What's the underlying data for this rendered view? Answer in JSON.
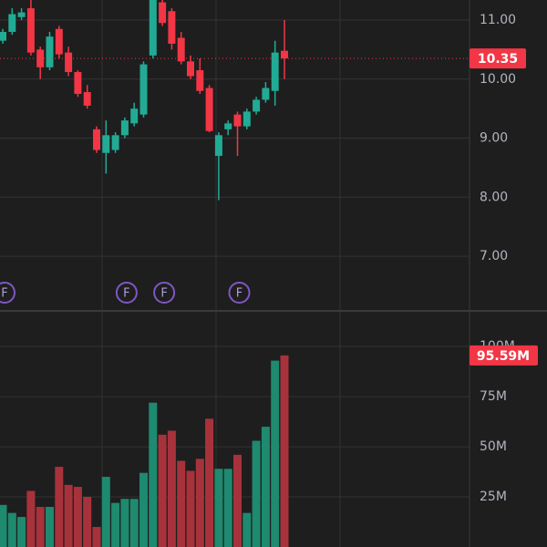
{
  "chart_data": [
    {
      "type": "candlestick",
      "open": [
        10.65,
        10.8,
        11.05,
        11.2,
        10.5,
        10.2,
        10.85,
        10.45,
        10.12,
        9.78,
        9.15,
        8.75,
        8.8,
        9.05,
        9.25,
        9.4,
        10.4,
        11.3,
        11.15,
        10.7,
        10.3,
        10.15,
        9.85,
        8.7,
        9.15,
        9.4,
        9.2,
        9.45,
        9.65,
        9.8,
        10.48
      ],
      "high": [
        10.85,
        11.2,
        11.2,
        11.34,
        10.55,
        10.8,
        10.9,
        10.55,
        10.15,
        9.9,
        9.2,
        9.3,
        9.1,
        9.35,
        9.6,
        10.3,
        11.4,
        11.34,
        11.2,
        10.8,
        10.4,
        10.35,
        9.9,
        9.1,
        9.3,
        9.45,
        9.5,
        9.7,
        9.95,
        10.65,
        11.0
      ],
      "low": [
        10.6,
        10.75,
        11.0,
        10.4,
        10.0,
        10.15,
        10.35,
        10.05,
        9.7,
        9.5,
        8.75,
        8.4,
        8.75,
        9.0,
        9.2,
        9.35,
        10.35,
        10.9,
        10.5,
        10.25,
        10.0,
        9.75,
        9.1,
        7.95,
        9.05,
        8.7,
        9.15,
        9.4,
        9.6,
        9.55,
        10.0
      ],
      "close": [
        10.8,
        11.1,
        11.13,
        10.45,
        10.2,
        10.72,
        10.42,
        10.12,
        9.75,
        9.55,
        8.8,
        9.05,
        9.05,
        9.3,
        9.5,
        10.25,
        11.4,
        10.95,
        10.6,
        10.3,
        10.05,
        9.8,
        9.12,
        9.05,
        9.25,
        9.2,
        9.45,
        9.65,
        9.85,
        10.45,
        10.35
      ],
      "up_color": "#22ab94",
      "down_color": "#f23645",
      "ylim": [
        6.09,
        11.34
      ],
      "yticks": [
        {
          "value": 7,
          "label": "7.00"
        },
        {
          "value": 8,
          "label": "8.00"
        },
        {
          "value": 9,
          "label": "9.00"
        },
        {
          "value": 10,
          "label": "10.00"
        },
        {
          "value": 11,
          "label": "11.00"
        }
      ],
      "last_price": {
        "value": 10.35,
        "label": "10.35"
      },
      "events": [
        {
          "index": 0,
          "label": "F"
        },
        {
          "index": 13,
          "label": "F"
        },
        {
          "index": 17,
          "label": "F"
        },
        {
          "index": 25,
          "label": "F"
        }
      ],
      "grid": true
    },
    {
      "type": "volume",
      "values": [
        21,
        17,
        15,
        28,
        20,
        20,
        40,
        31,
        30,
        25,
        10,
        35,
        22,
        24,
        24,
        37,
        72,
        56,
        58,
        43,
        38,
        44,
        64,
        39,
        39,
        46,
        17,
        53,
        60,
        93,
        95.59
      ],
      "value_labels": [
        null,
        null,
        null,
        null,
        null,
        null,
        null,
        null,
        null,
        null,
        null,
        null,
        null,
        null,
        null,
        null,
        null,
        null,
        null,
        null,
        null,
        null,
        null,
        null,
        null,
        null,
        null,
        null,
        null,
        null,
        "95.59M"
      ],
      "up_color": "#1e8a70",
      "down_color": "#a8323b",
      "ylim": [
        0,
        116
      ],
      "yticks": [
        {
          "value": 25,
          "label": "25M"
        },
        {
          "value": 50,
          "label": "50M"
        },
        {
          "value": 75,
          "label": "75M"
        },
        {
          "value": 100,
          "label": "100M"
        }
      ],
      "grid": true
    }
  ]
}
